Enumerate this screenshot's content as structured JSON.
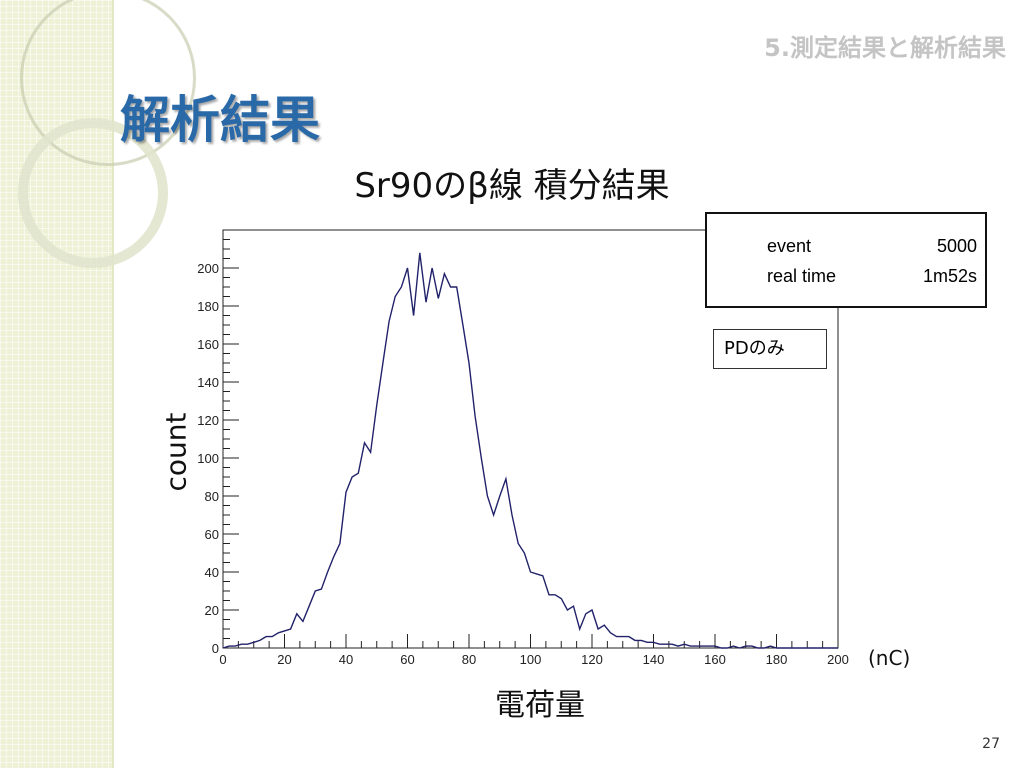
{
  "slide": {
    "section_label": "5.測定結果と解析結果",
    "title": "解析結果",
    "page_number": "27"
  },
  "chart_data": {
    "type": "line",
    "title": "Sr90のβ線 積分結果",
    "xlabel": "電荷量",
    "ylabel": "count",
    "x_unit": "(nC)",
    "xlim": [
      0,
      200
    ],
    "ylim": [
      0,
      220
    ],
    "x_ticks": [
      0,
      20,
      40,
      60,
      80,
      100,
      120,
      140,
      160,
      180,
      200
    ],
    "y_ticks": [
      0,
      20,
      40,
      60,
      80,
      100,
      120,
      140,
      160,
      180,
      200
    ],
    "grid": false,
    "stats_box": {
      "entries": [
        {
          "key": "event",
          "value": "5000"
        },
        {
          "key": "real time",
          "value": "1m52s"
        }
      ]
    },
    "annotation": "PDのみ",
    "series": [
      {
        "x": [
          0,
          2,
          4,
          6,
          8,
          10,
          12,
          14,
          16,
          18,
          20,
          22,
          24,
          26,
          28,
          30,
          32,
          34,
          36,
          38,
          40,
          42,
          44,
          46,
          48,
          50,
          52,
          54,
          56,
          58,
          60,
          62,
          64,
          66,
          68,
          70,
          72,
          74,
          76,
          78,
          80,
          82,
          84,
          86,
          88,
          90,
          92,
          94,
          96,
          98,
          100,
          102,
          104,
          106,
          108,
          110,
          112,
          114,
          116,
          118,
          120,
          122,
          124,
          126,
          128,
          130,
          132,
          134,
          136,
          138,
          140,
          142,
          144,
          146,
          148,
          150,
          152,
          154,
          156,
          158,
          160,
          162,
          164,
          166,
          168,
          170,
          172,
          174,
          176,
          178,
          180,
          182,
          184,
          186,
          188,
          190,
          192,
          194,
          196,
          198
        ],
        "values": [
          0,
          1,
          1,
          2,
          2,
          3,
          4,
          6,
          6,
          8,
          9,
          10,
          18,
          14,
          22,
          30,
          31,
          40,
          48,
          55,
          82,
          90,
          92,
          108,
          103,
          128,
          150,
          172,
          185,
          190,
          200,
          175,
          208,
          182,
          200,
          184,
          197,
          190,
          190,
          170,
          150,
          122,
          100,
          80,
          70,
          80,
          89,
          70,
          55,
          50,
          40,
          39,
          38,
          28,
          28,
          26,
          20,
          22,
          10,
          18,
          20,
          10,
          12,
          8,
          6,
          6,
          6,
          4,
          4,
          3,
          3,
          2,
          2,
          2,
          1,
          2,
          1,
          1,
          1,
          1,
          1,
          0,
          0,
          1,
          0,
          1,
          1,
          0,
          0,
          1,
          0,
          0,
          0,
          0,
          0,
          0,
          0,
          0,
          0,
          0
        ]
      }
    ]
  }
}
